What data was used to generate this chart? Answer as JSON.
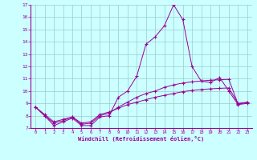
{
  "x_values": [
    0,
    1,
    2,
    3,
    4,
    5,
    6,
    7,
    8,
    9,
    10,
    11,
    12,
    13,
    14,
    15,
    16,
    17,
    18,
    19,
    20,
    21,
    22,
    23
  ],
  "line1": [
    8.7,
    8.0,
    7.2,
    7.5,
    7.8,
    7.2,
    7.2,
    7.9,
    8.0,
    9.5,
    10.0,
    11.2,
    13.8,
    14.4,
    15.3,
    17.0,
    15.8,
    12.0,
    10.8,
    10.7,
    11.1,
    10.0,
    8.9,
    9.0
  ],
  "line2": [
    8.7,
    8.0,
    7.4,
    7.6,
    7.9,
    7.3,
    7.4,
    8.0,
    8.2,
    8.7,
    9.1,
    9.5,
    9.8,
    10.0,
    10.3,
    10.5,
    10.65,
    10.75,
    10.82,
    10.88,
    10.92,
    10.95,
    8.95,
    9.05
  ],
  "line3": [
    8.7,
    8.1,
    7.5,
    7.7,
    7.9,
    7.4,
    7.5,
    8.1,
    8.3,
    8.6,
    8.9,
    9.1,
    9.3,
    9.5,
    9.65,
    9.8,
    9.95,
    10.05,
    10.12,
    10.18,
    10.22,
    10.25,
    9.0,
    9.1
  ],
  "line_color": "#990099",
  "bg_color": "#ccffff",
  "grid_color": "#99cccc",
  "xlabel": "Windchill (Refroidissement éolien,°C)",
  "ylim": [
    7,
    17
  ],
  "xlim": [
    -0.5,
    23.5
  ],
  "yticks": [
    7,
    8,
    9,
    10,
    11,
    12,
    13,
    14,
    15,
    16,
    17
  ],
  "xticks": [
    0,
    1,
    2,
    3,
    4,
    5,
    6,
    7,
    8,
    9,
    10,
    11,
    12,
    13,
    14,
    15,
    16,
    17,
    18,
    19,
    20,
    21,
    22,
    23
  ]
}
